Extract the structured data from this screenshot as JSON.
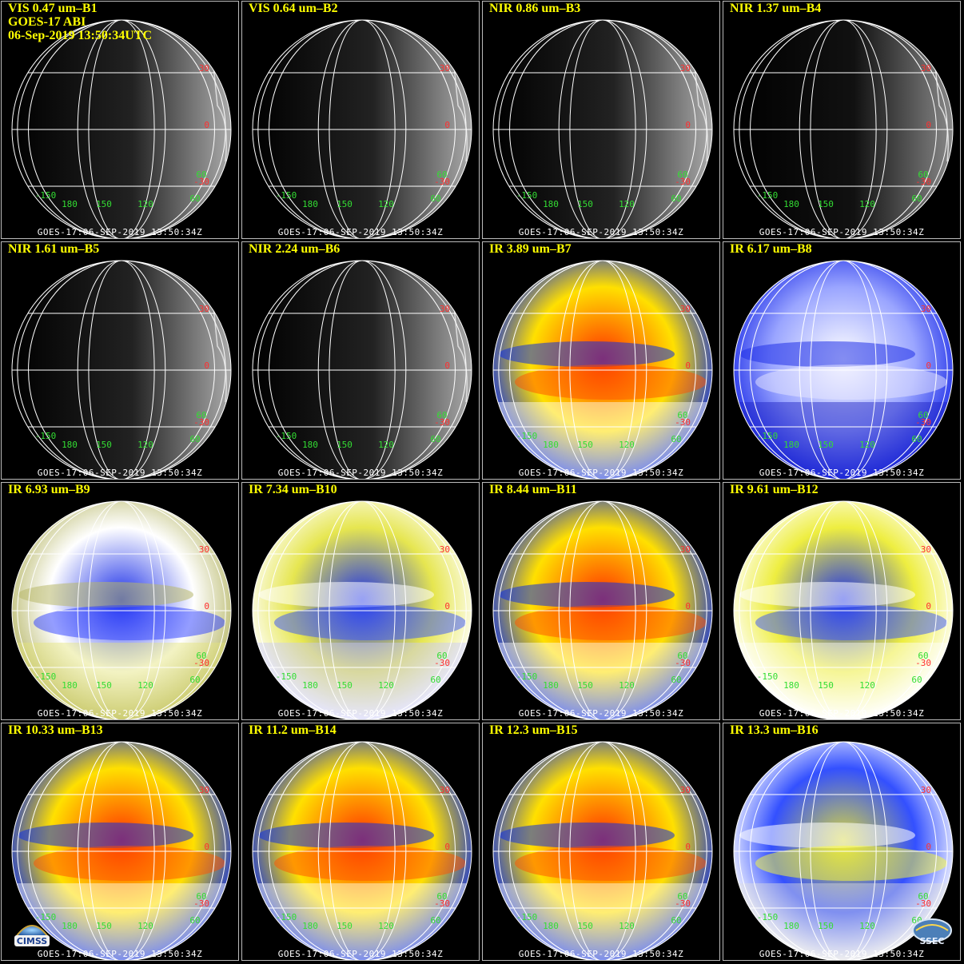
{
  "header": {
    "satellite": "GOES-17 ABI",
    "datetime": "06-Sep-2019 13:50:34UTC"
  },
  "footer_text": "GOES-17:06-SEP-2019 13:50:34Z",
  "grid_labels": {
    "lat": [
      "30",
      "0",
      "-30"
    ],
    "lon": [
      "-150",
      "180",
      "150",
      "120",
      "60"
    ],
    "edge": "60"
  },
  "colors": {
    "title": "#ffff00",
    "footer": "#ffffff",
    "lat_label": "#ff3030",
    "lon_label": "#33dd33",
    "gridline": "#ffffff"
  },
  "panels": [
    {
      "label": "VIS 0.47 um–B1",
      "style": "vis"
    },
    {
      "label": "VIS 0.64 um–B2",
      "style": "vis"
    },
    {
      "label": "NIR 0.86 um–B3",
      "style": "vis"
    },
    {
      "label": "NIR 1.37 um–B4",
      "style": "dark"
    },
    {
      "label": "NIR 1.61 um–B5",
      "style": "vis"
    },
    {
      "label": "NIR 2.24 um–B6",
      "style": "vis"
    },
    {
      "label": "IR 3.89 um–B7",
      "style": "red"
    },
    {
      "label": "IR 6.17 um–B8",
      "style": "wv-white"
    },
    {
      "label": "IR 6.93 um–B9",
      "style": "wv-blue"
    },
    {
      "label": "IR 7.34 um–B10",
      "style": "wv-yellow"
    },
    {
      "label": "IR 8.44 um–B11",
      "style": "red"
    },
    {
      "label": "IR 9.61 um–B12",
      "style": "yellow"
    },
    {
      "label": "IR 10.33 um–B13",
      "style": "red"
    },
    {
      "label": "IR 11.2 um–B14",
      "style": "red"
    },
    {
      "label": "IR 12.3 um–B15",
      "style": "red"
    },
    {
      "label": "IR 13.3 um–B16",
      "style": "yellow2"
    }
  ],
  "logos": {
    "left": {
      "text": "CIMSS",
      "icon": "cimss-logo-icon"
    },
    "right": {
      "text": "SSEC",
      "icon": "ssec-logo-icon"
    }
  }
}
